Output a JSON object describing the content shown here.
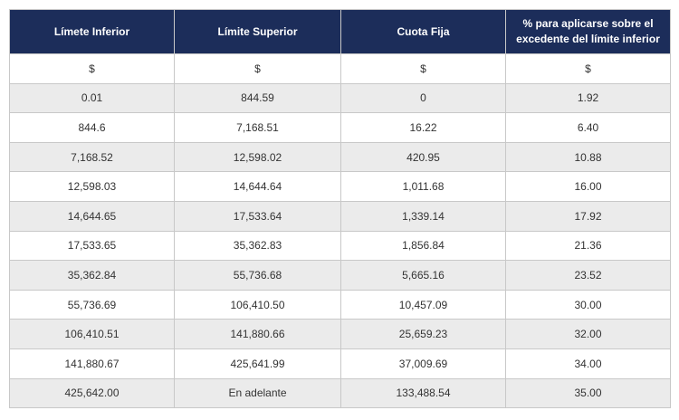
{
  "header": [
    "Límete Inferior",
    "Límite Superior",
    "Cuota Fija",
    "% para aplicarse sobre el excedente del límite inferior"
  ],
  "rows": [
    [
      "$",
      "$",
      "$",
      "$"
    ],
    [
      "0.01",
      "844.59",
      "0",
      "1.92"
    ],
    [
      "844.6",
      "7,168.51",
      "16.22",
      "6.40"
    ],
    [
      "7,168.52",
      "12,598.02",
      "420.95",
      "10.88"
    ],
    [
      "12,598.03",
      "14,644.64",
      "1,011.68",
      "16.00"
    ],
    [
      "14,644.65",
      "17,533.64",
      "1,339.14",
      "17.92"
    ],
    [
      "17,533.65",
      "35,362.83",
      "1,856.84",
      "21.36"
    ],
    [
      "35,362.84",
      "55,736.68",
      "5,665.16",
      "23.52"
    ],
    [
      "55,736.69",
      "106,410.50",
      "10,457.09",
      "30.00"
    ],
    [
      "106,410.51",
      "141,880.66",
      "25,659.23",
      "32.00"
    ],
    [
      "141,880.67",
      "425,641.99",
      "37,009.69",
      "34.00"
    ],
    [
      "425,642.00",
      "En adelante",
      "133,488.54",
      "35.00"
    ]
  ]
}
